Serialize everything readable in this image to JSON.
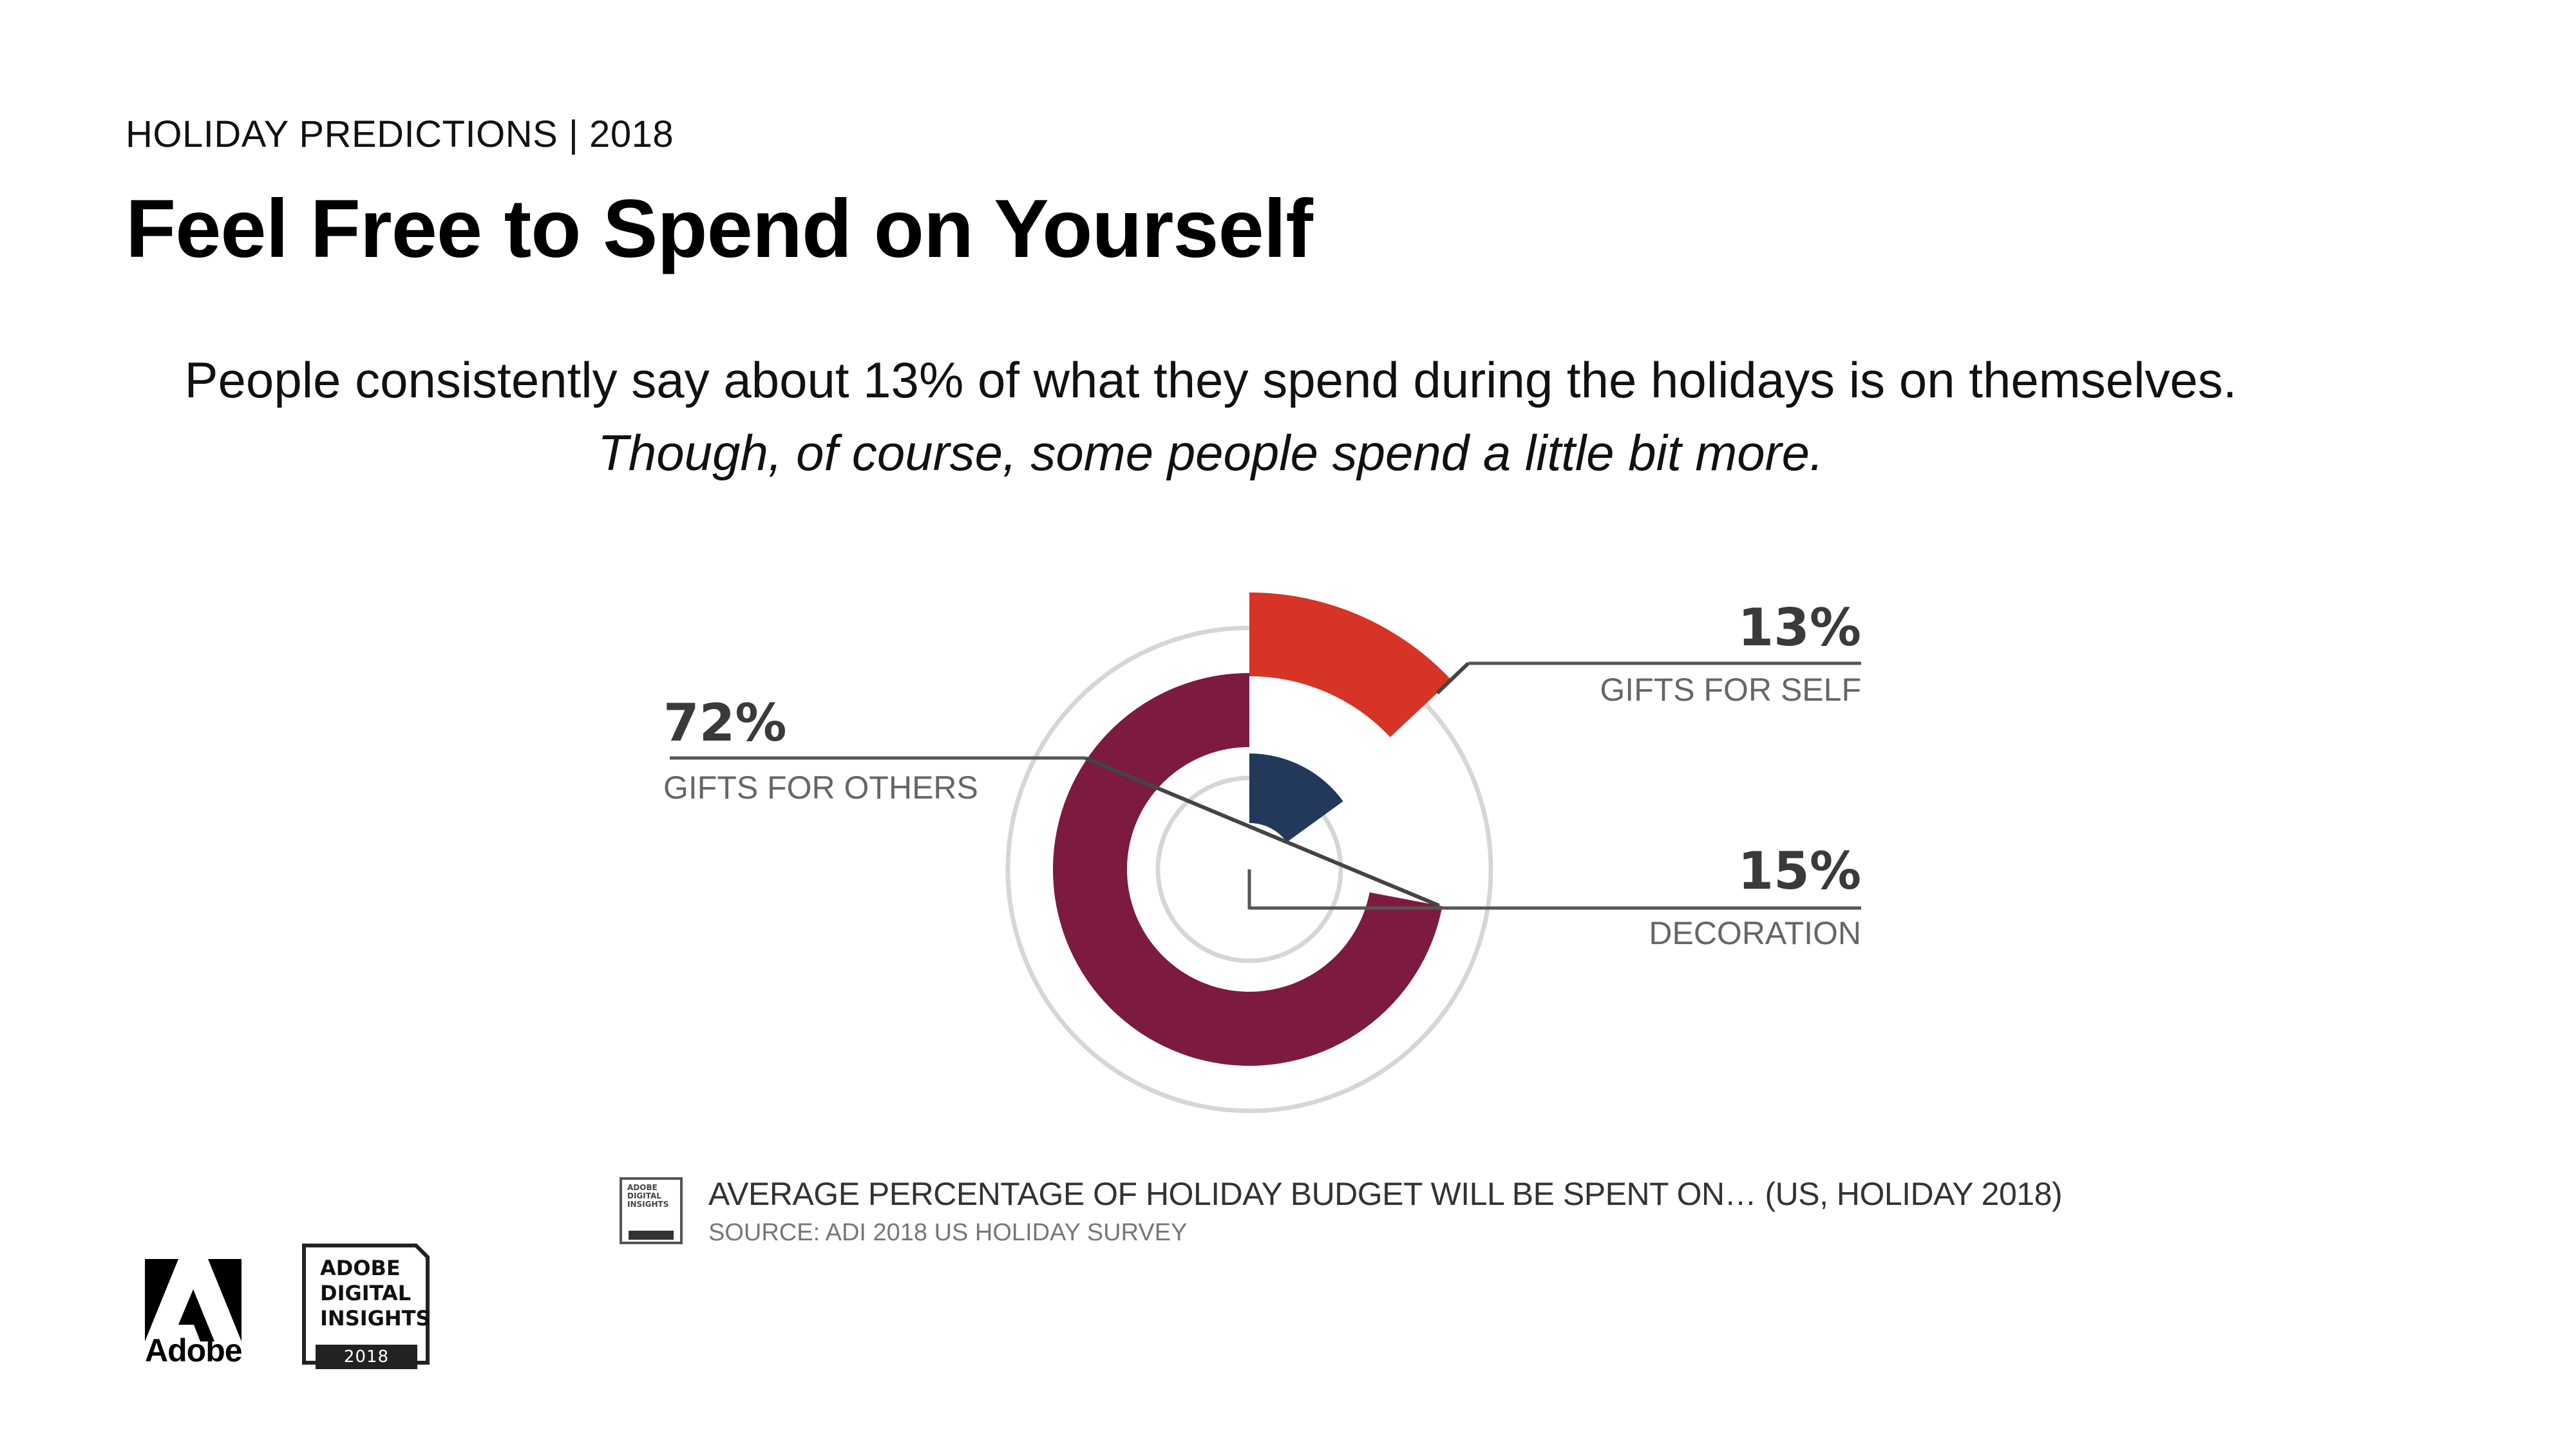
{
  "header": {
    "eyebrow": "HOLIDAY PREDICTIONS | 2018",
    "title": "Feel Free to Spend on Yourself"
  },
  "intro": {
    "line1": "People consistently say about 13% of what they spend during the holidays is on themselves.",
    "line2": "Though, of course, some people spend a little bit more."
  },
  "chart_data": {
    "type": "pie",
    "variant": "radial-bar",
    "unit": "%",
    "slices": [
      {
        "label": "GIFTS FOR SELF",
        "value": 13,
        "display": "13%",
        "color": "#d63426"
      },
      {
        "label": "GIFTS FOR OTHERS",
        "value": 72,
        "display": "72%",
        "color": "#7d1a40"
      },
      {
        "label": "DECORATION",
        "value": 15,
        "display": "15%",
        "color": "#22395b"
      }
    ],
    "caption": "AVERAGE PERCENTAGE OF HOLIDAY BUDGET WILL BE SPENT ON… (US, HOLIDAY 2018)",
    "source": "SOURCE: ADI 2018 US HOLIDAY SURVEY"
  },
  "footer": {
    "icon_text": "ADOBE DIGITAL INSIGHTS",
    "adobe_wordmark": "Adobe",
    "badge_lines": [
      "ADOBE",
      "DIGITAL",
      "INSIGHTS"
    ],
    "badge_year": "2018"
  }
}
